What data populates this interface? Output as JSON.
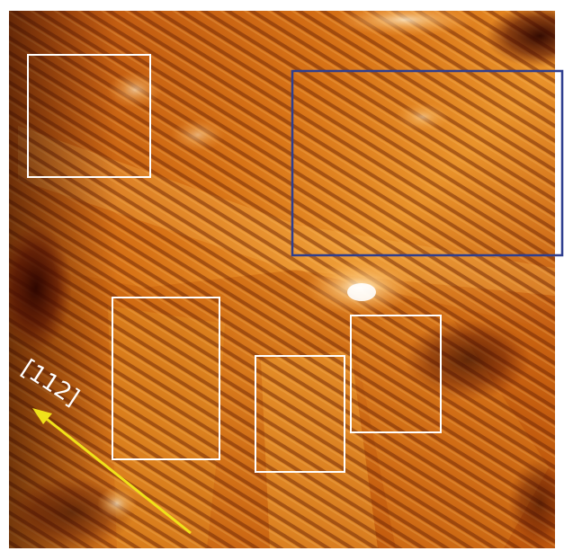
{
  "image": {
    "direction_label": "[112]",
    "arrow_color": "#f0e21a",
    "white_box_color": "#ffffff",
    "blue_box_color": "#2f3f8f"
  }
}
